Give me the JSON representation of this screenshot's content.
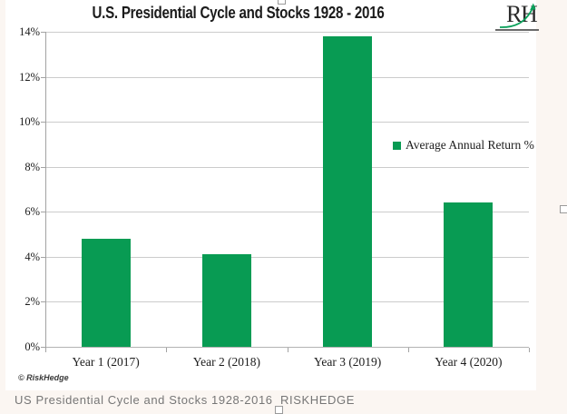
{
  "page": {
    "caption": "US Presidential Cycle and Stocks 1928-2016  RISKHEDGE"
  },
  "brand": {
    "logo_letters": [
      "R",
      "H"
    ],
    "watermark": "© RiskHedge"
  },
  "colors": {
    "bar": "#089b53",
    "logo_accent": "#0aa05a",
    "gridline": "#cccccc",
    "caption_text": "#767676"
  },
  "chart_data": {
    "type": "bar",
    "title": "U.S. Presidential Cycle and Stocks 1928 - 2016",
    "categories": [
      "Year 1 (2017)",
      "Year 2 (2018)",
      "Year 3 (2019)",
      "Year 4 (2020)"
    ],
    "values": [
      4.8,
      4.1,
      13.8,
      6.4
    ],
    "legend": [
      {
        "label": "Average Annual Return %",
        "color": "#089b53"
      }
    ],
    "legend_position": "middle-right",
    "xlabel": "",
    "ylabel": "",
    "ylim": [
      0,
      14
    ],
    "ytick_step": 2,
    "ytick_labels": [
      "0%",
      "2%",
      "4%",
      "6%",
      "8%",
      "10%",
      "12%",
      "14%"
    ],
    "grid": true
  }
}
